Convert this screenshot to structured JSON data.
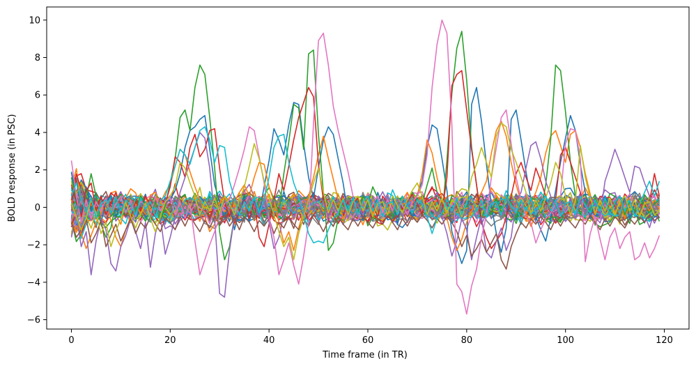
{
  "chart_data": {
    "type": "line",
    "title": "",
    "xlabel": "Time frame (in TR)",
    "ylabel": "BOLD response (in PSC)",
    "xlim": [
      -5,
      125
    ],
    "ylim": [
      -6.5,
      10.7
    ],
    "xticks": [
      0,
      20,
      40,
      60,
      80,
      100,
      120
    ],
    "yticks": [
      -6,
      -4,
      -2,
      0,
      2,
      4,
      6,
      8,
      10
    ],
    "xtick_labels": [
      "0",
      "20",
      "40",
      "60",
      "80",
      "100",
      "120"
    ],
    "ytick_labels": [
      "−6",
      "−4",
      "−2",
      "0",
      "2",
      "4",
      "6",
      "8",
      "10"
    ],
    "grid": false,
    "legend": "none",
    "n_frames": 120,
    "series_count_estimate": 60,
    "colors": [
      "#1f77b4",
      "#ff7f0e",
      "#2ca02c",
      "#d62728",
      "#9467bd",
      "#8c564b",
      "#e377c2",
      "#7f7f7f",
      "#bcbd22",
      "#17becf"
    ],
    "series": [
      {
        "values": [
          1.9,
          0.6,
          -0.4,
          1.1,
          -0.2,
          0.5,
          -0.8,
          0.3,
          0.6,
          -0.5,
          0.2,
          -0.1,
          0.4,
          -0.6,
          0.1,
          0.7,
          -0.3,
          0.2,
          -0.5,
          0.3,
          0.4,
          0.9,
          1.8,
          3.2,
          4.1,
          4.3,
          4.7,
          4.9,
          3.1,
          1.2,
          0.3,
          -0.6,
          0.4,
          -1.2,
          -0.2,
          0.6,
          -0.8,
          0.3,
          -0.4,
          1.1,
          2.5,
          4.2,
          3.6,
          2.8,
          4.4,
          5.6,
          5.5,
          3.4,
          1.6,
          0.5,
          2.1,
          3.6,
          4.3,
          3.9,
          2.6,
          1.3,
          -0.4,
          0.6,
          0.2,
          -0.7,
          0.3,
          -0.5,
          0.8,
          0.1,
          -0.3,
          0.6,
          -0.9,
          0.4,
          0.2,
          -0.5,
          0.7,
          1.4,
          3.2,
          4.4,
          4.2,
          2.6,
          0.9,
          -1.3,
          -2.2,
          -3.0,
          -2.3,
          5.5,
          6.4,
          4.6,
          2.3,
          0.1,
          -1.4,
          -2.4,
          -1.1,
          4.7,
          5.2,
          3.6,
          1.9,
          0.4,
          -0.5,
          -1.2,
          -1.8,
          -0.6,
          0.9,
          2.4,
          3.7,
          4.9,
          4.1,
          2.3,
          0.8,
          -0.6,
          0.4,
          -0.2,
          0.6,
          -0.4,
          0.3,
          -0.1,
          0.5,
          -0.6,
          0.2,
          -0.3,
          0.4,
          -0.1,
          0.3,
          0.1
        ]
      },
      {
        "values": [
          0.4,
          -0.6,
          -1.4,
          -2.2,
          -1.5,
          -0.8,
          -0.3,
          0.4,
          -0.7,
          -1.6,
          -2.1,
          -1.2,
          -0.5,
          0.3,
          -0.4,
          0.6,
          -0.2,
          0.5,
          0.2,
          0.8,
          1.2,
          2.2,
          3.1,
          2.8,
          1.9,
          1.1,
          0.4,
          -0.5,
          -1.3,
          -0.9,
          0.2,
          0.6,
          -0.4,
          0.3,
          0.8,
          1.2,
          0.6,
          1.6,
          2.4,
          2.3,
          1.1,
          0.3,
          -0.8,
          -1.9,
          -1.3,
          -2.3,
          -1.1,
          -0.2,
          0.6,
          1.6,
          2.8,
          3.8,
          2.6,
          1.5,
          0.4,
          -0.6,
          -0.2,
          0.4,
          -0.3,
          0.2,
          0.6,
          -0.4,
          0.3,
          -0.2,
          0.5,
          0.1,
          -0.3,
          0.4,
          0.8,
          0.2,
          0.6,
          1.8,
          3.6,
          2.9,
          1.6,
          0.5,
          -0.6,
          -1.6,
          -2.3,
          -1.7,
          -0.8,
          -0.2,
          0.4,
          0.8,
          1.4,
          2.9,
          4.1,
          4.6,
          3.8,
          2.4,
          1.2,
          0.3,
          -0.4,
          0.2,
          0.8,
          1.6,
          2.9,
          3.8,
          4.1,
          3.3,
          2.4,
          3.9,
          4.1,
          3.2,
          1.8,
          0.7,
          -0.4,
          0.3,
          -0.2,
          0.5,
          -0.3,
          0.4,
          -0.6,
          0.2,
          0.1,
          -0.4,
          0.3,
          -0.2,
          0.4,
          -0.1
        ]
      },
      {
        "values": [
          1.6,
          0.4,
          -0.8,
          0.5,
          1.8,
          0.6,
          -0.9,
          -1.6,
          -1.1,
          0.3,
          0.7,
          -0.4,
          0.5,
          -0.2,
          0.6,
          0.2,
          -0.5,
          0.3,
          -0.8,
          0.1,
          1.3,
          2.6,
          4.8,
          5.2,
          4.1,
          6.4,
          7.6,
          7.1,
          4.8,
          2.1,
          -1.3,
          -2.8,
          -2.1,
          -0.5,
          0.4,
          -0.6,
          0.2,
          -0.4,
          0.5,
          0.3,
          -0.5,
          0.6,
          -0.3,
          1.8,
          3.5,
          5.5,
          5.3,
          3.1,
          8.2,
          8.4,
          3.9,
          0.8,
          -2.3,
          -1.9,
          -0.6,
          0.5,
          -0.2,
          0.4,
          -0.3,
          0.6,
          0.2,
          1.1,
          0.5,
          -0.4,
          0.3,
          -0.5,
          0.2,
          0.6,
          0.1,
          -0.3,
          0.4,
          0.2,
          1.2,
          2.1,
          0.8,
          -0.6,
          2.5,
          6.1,
          8.5,
          9.4,
          6.8,
          3.2,
          1.2,
          -0.6,
          0.2,
          -0.4,
          0.5,
          -0.3,
          0.6,
          0.2,
          -0.5,
          0.3,
          -0.2,
          0.5,
          0.4,
          -0.3,
          1.2,
          3.6,
          7.6,
          7.3,
          5.1,
          2.4,
          0.6,
          -0.4,
          0.3,
          -0.2,
          0.5,
          -0.1,
          0.4,
          -0.3,
          0.2,
          0.6,
          -0.4,
          0.3,
          -0.2,
          0.5,
          0.1,
          -0.3,
          0.2,
          0.4
        ]
      },
      {
        "values": [
          1.2,
          0.3,
          -0.5,
          0.9,
          1.3,
          -0.2,
          0.6,
          -0.4,
          0.2,
          0.8,
          -0.3,
          0.5,
          -0.6,
          0.3,
          -0.2,
          0.6,
          0.1,
          -0.4,
          0.5,
          0.2,
          1.1,
          2.7,
          2.4,
          1.6,
          3.2,
          3.9,
          2.7,
          3.1,
          4.1,
          4.2,
          2.1,
          0.3,
          -0.5,
          0.6,
          -0.2,
          0.4,
          -0.6,
          0.3,
          -1.6,
          -2.1,
          -0.9,
          0.4,
          1.8,
          0.9,
          2.2,
          3.6,
          4.8,
          5.6,
          6.4,
          5.9,
          2.3,
          0.4,
          -0.5,
          0.3,
          -0.2,
          0.6,
          -0.4,
          0.2,
          0.5,
          -0.3,
          0.4,
          0.1,
          -0.5,
          0.6,
          0.2,
          -0.3,
          0.5,
          -0.1,
          0.3,
          0.7,
          0.2,
          -0.4,
          0.6,
          1.1,
          0.4,
          -0.3,
          1.6,
          6.5,
          7.1,
          7.3,
          5.2,
          3.1,
          1.2,
          -0.8,
          -1.6,
          -2.2,
          -1.8,
          -1.4,
          -0.5,
          0.6,
          1.8,
          2.4,
          1.6,
          0.9,
          2.1,
          1.4,
          0.6,
          -0.3,
          0.4,
          2.8,
          3.2,
          2.4,
          1.6,
          0.8,
          -0.4,
          0.3,
          -0.2,
          0.5,
          -0.3,
          0.4,
          0.1,
          -0.5,
          0.3,
          -0.2,
          0.6,
          0.2,
          -0.4,
          0.3,
          1.8,
          0.6
        ]
      },
      {
        "values": [
          -1.6,
          -0.4,
          -2.1,
          -1.3,
          -3.6,
          -1.8,
          -0.6,
          -1.2,
          -3.0,
          -3.4,
          -2.1,
          -1.5,
          -0.6,
          -1.3,
          -2.2,
          -0.8,
          -3.2,
          -1.4,
          -0.5,
          -2.5,
          -1.6,
          -0.5,
          0.8,
          1.6,
          2.4,
          3.2,
          4.0,
          3.7,
          2.1,
          -0.6,
          -4.6,
          -4.8,
          -2.3,
          -0.5,
          0.4,
          -0.3,
          0.6,
          0.2,
          -0.5,
          0.3,
          -0.8,
          -2.2,
          -1.6,
          -0.4,
          0.3,
          -0.6,
          0.2,
          -0.4,
          0.5,
          -0.2,
          0.6,
          0.3,
          -0.5,
          0.2,
          -0.3,
          0.4,
          -0.6,
          0.3,
          0.1,
          -0.4,
          0.5,
          -0.2,
          0.3,
          -0.5,
          0.6,
          -0.1,
          0.2,
          -0.4,
          0.5,
          0.2,
          -0.3,
          0.4,
          -0.6,
          0.3,
          0.8,
          -0.5,
          -1.4,
          -2.6,
          -1.8,
          -0.6,
          -1.2,
          -2.8,
          -1.6,
          -0.5,
          -2.4,
          -2.7,
          -1.8,
          -1.1,
          -2.3,
          -1.6,
          0.3,
          0.8,
          2.1,
          3.3,
          3.5,
          2.6,
          1.4,
          0.6,
          -0.4,
          0.3,
          -0.2,
          0.5,
          -0.6,
          0.4,
          -0.3,
          0.6,
          0.2,
          -0.5,
          1.4,
          2.2,
          3.1,
          2.4,
          1.6,
          0.8,
          2.2,
          2.1,
          1.3,
          0.6,
          -0.2,
          0.4
        ]
      },
      {
        "values": [
          -0.8,
          -1.6,
          -1.2,
          -0.6,
          -1.9,
          -1.4,
          -0.7,
          -2.1,
          -1.5,
          -0.9,
          -1.8,
          -1.2,
          -0.6,
          -1.4,
          -0.8,
          -1.1,
          -0.5,
          -0.9,
          -1.3,
          -0.6,
          -0.8,
          -1.2,
          -0.5,
          -1.0,
          -0.4,
          -0.9,
          -1.3,
          -0.7,
          -1.1,
          -0.5,
          -0.9,
          -0.4,
          -1.0,
          -0.6,
          -1.2,
          -0.5,
          -0.8,
          -1.3,
          -0.7,
          -1.0,
          -0.6,
          -1.4,
          -0.8,
          -1.1,
          -0.5,
          -0.9,
          -1.2,
          -0.6,
          -1.0,
          -0.4,
          -0.8,
          -1.3,
          -0.7,
          -1.0,
          -0.5,
          -0.9,
          -1.2,
          -0.6,
          -1.0,
          -0.5,
          -0.8,
          -1.1,
          -0.6,
          -0.9,
          -0.4,
          -0.8,
          -1.2,
          -0.6,
          -1.0,
          -0.5,
          -0.8,
          -0.4,
          -0.7,
          -1.1,
          -0.6,
          -0.9,
          -0.5,
          -0.8,
          -1.3,
          -2.1,
          -1.5,
          -2.6,
          -2.2,
          -1.7,
          -2.4,
          -1.9,
          -1.4,
          -2.8,
          -3.3,
          -2.1,
          -1.4,
          -0.8,
          -1.1,
          -0.6,
          -0.9,
          -0.5,
          -0.8,
          -1.2,
          -0.6,
          -1.0,
          -0.5,
          -0.8,
          -1.1,
          -0.6,
          -0.9,
          -0.4,
          -0.8,
          -1.2,
          -0.6,
          -1.0,
          -0.5,
          -0.8,
          -1.1,
          -0.6,
          -0.9,
          -0.5,
          -0.8,
          -0.4,
          -0.7,
          -0.5
        ]
      },
      {
        "values": [
          2.5,
          0.6,
          -0.8,
          0.4,
          -0.6,
          0.3,
          -0.2,
          0.5,
          -0.4,
          0.2,
          0.6,
          -0.3,
          0.4,
          -0.5,
          0.3,
          0.1,
          -0.4,
          0.6,
          -0.2,
          0.3,
          0.5,
          -0.4,
          0.3,
          -0.6,
          0.2,
          -1.8,
          -3.6,
          -2.8,
          -2.0,
          -1.3,
          -0.5,
          0.2,
          0.4,
          1.2,
          2.1,
          3.1,
          4.3,
          4.1,
          2.7,
          1.3,
          -0.6,
          -1.6,
          -3.6,
          -2.8,
          -1.9,
          -3.1,
          -4.1,
          -2.6,
          -0.8,
          4.5,
          8.9,
          9.3,
          7.6,
          5.4,
          4.1,
          3.0,
          1.9,
          0.6,
          -0.4,
          0.3,
          -0.5,
          0.2,
          0.6,
          -0.3,
          0.4,
          -0.2,
          0.5,
          0.1,
          -0.4,
          0.3,
          0.6,
          1.2,
          2.8,
          6.4,
          8.7,
          10.0,
          9.3,
          4.4,
          -4.1,
          -4.5,
          -5.7,
          -4.2,
          -3.3,
          -1.6,
          -0.4,
          1.6,
          3.2,
          4.8,
          5.2,
          3.4,
          1.6,
          0.4,
          -0.5,
          -0.8,
          -1.9,
          -1.2,
          -0.6,
          -0.3,
          0.2,
          0.6,
          3.4,
          4.2,
          4.1,
          2.6,
          -2.9,
          -1.4,
          -0.5,
          -1.7,
          -2.8,
          -1.6,
          -1.1,
          -2.2,
          -1.6,
          -1.3,
          -2.8,
          -2.6,
          -1.9,
          -2.7,
          -2.2,
          -1.5
        ]
      },
      {
        "values": [
          0.3,
          -0.4,
          0.6,
          -0.2,
          0.4,
          -0.5,
          0.3,
          0.1,
          -0.4,
          0.5,
          -0.2,
          0.3,
          0.6,
          -0.4,
          0.2,
          -0.3,
          0.5,
          0.1,
          -0.5,
          0.3,
          -0.2,
          0.6,
          0.4,
          -0.3,
          0.5,
          -0.1,
          0.3,
          -0.5,
          0.2,
          0.6,
          -0.3,
          0.4,
          -0.2,
          0.5,
          0.1,
          -0.4,
          0.3,
          -0.6,
          0.2,
          0.5,
          -0.3,
          0.4,
          0.1,
          -0.5,
          0.3,
          -0.2,
          0.6,
          0.4,
          -0.3,
          0.2,
          -0.5,
          0.3,
          0.6,
          -0.2,
          0.4,
          -0.1,
          0.5,
          -0.4,
          0.2,
          0.3,
          -0.5,
          0.6,
          -0.2,
          0.4,
          0.1,
          -0.3,
          0.5,
          -0.4,
          0.2,
          0.6,
          -0.3,
          0.4,
          -0.1,
          0.3,
          -0.5,
          0.2,
          0.5,
          -0.4,
          0.3,
          0.1,
          -0.3,
          0.6,
          -0.2,
          0.4,
          -0.5,
          0.3,
          0.2,
          -0.4,
          0.5,
          -0.1,
          0.3,
          -0.3,
          0.6,
          0.2,
          -0.4,
          0.3,
          -0.2,
          0.5,
          0.1,
          -0.5,
          0.4,
          -0.2,
          0.6,
          0.3,
          -0.4,
          0.2,
          -0.1,
          0.5,
          -0.3,
          0.4,
          0.2,
          -0.5,
          0.3,
          -0.2,
          0.6,
          0.1,
          -0.4,
          0.3,
          -0.2,
          0.4
        ]
      },
      {
        "values": [
          0.2,
          -0.5,
          -1.2,
          -0.6,
          0.4,
          -0.3,
          -1.4,
          -0.8,
          -2.1,
          -1.3,
          -0.6,
          0.3,
          -0.5,
          -1.1,
          -0.4,
          0.2,
          -0.6,
          -1.3,
          -0.5,
          0.3,
          0.6,
          1.1,
          2.4,
          2.1,
          1.3,
          0.6,
          -0.4,
          0.3,
          -0.2,
          0.5,
          -0.3,
          0.6,
          0.2,
          -0.4,
          0.4,
          1.1,
          2.2,
          3.4,
          2.6,
          1.4,
          0.5,
          -0.4,
          -1.3,
          -2.1,
          -1.6,
          -2.8,
          -1.4,
          -0.5,
          0.4,
          1.3,
          2.1,
          0.8,
          -0.3,
          0.4,
          -0.2,
          0.5,
          -0.4,
          0.3,
          0.6,
          -0.2,
          0.4,
          -0.5,
          0.2,
          0.3,
          -0.4,
          0.6,
          0.1,
          -0.3,
          0.4,
          0.9,
          1.3,
          0.6,
          -0.4,
          0.3,
          -0.2,
          0.5,
          -0.3,
          0.4,
          0.2,
          -0.5,
          0.3,
          1.6,
          2.3,
          3.2,
          2.4,
          1.6,
          3.8,
          4.5,
          4.3,
          3.1,
          2.4,
          1.6,
          0.8,
          -0.3,
          0.4,
          -0.2,
          0.5,
          1.3,
          2.4,
          1.8,
          0.6,
          -0.4,
          0.3,
          3.3,
          1.6,
          0.5,
          -0.3,
          0.4,
          -0.2,
          0.5,
          -0.4,
          0.3,
          0.6,
          -0.2,
          0.4,
          -0.5,
          0.2,
          0.3,
          -0.4,
          -0.2
        ]
      },
      {
        "values": [
          0.6,
          1.3,
          0.4,
          -0.3,
          0.5,
          -0.6,
          0.2,
          0.4,
          -0.3,
          0.6,
          -0.2,
          0.4,
          0.1,
          -0.4,
          0.5,
          -0.1,
          0.3,
          -0.5,
          0.4,
          0.6,
          1.4,
          2.2,
          3.1,
          2.8,
          2.3,
          3.2,
          4.1,
          4.3,
          3.6,
          2.4,
          3.3,
          3.2,
          1.4,
          0.5,
          -0.4,
          0.3,
          -0.2,
          0.6,
          -0.3,
          0.4,
          1.6,
          3.2,
          3.8,
          3.9,
          2.4,
          1.3,
          0.6,
          -0.4,
          -1.4,
          -1.9,
          -1.8,
          -1.9,
          -1.2,
          -0.6,
          -0.3,
          0.4,
          -0.2,
          0.5,
          -0.4,
          0.3,
          0.6,
          -0.2,
          0.4,
          -0.5,
          0.2,
          0.3,
          -0.4,
          0.6,
          0.1,
          -0.3,
          0.4,
          0.2,
          -0.5,
          -1.4,
          -0.6,
          -0.3,
          0.4,
          -0.2,
          0.5,
          -0.4,
          0.3,
          0.6,
          -0.2,
          0.4,
          -0.5,
          0.2,
          0.3,
          -0.4,
          0.6,
          0.1,
          -0.3,
          0.4,
          -0.2,
          0.5,
          -0.4,
          0.3,
          0.6,
          -0.2,
          0.4,
          -0.5,
          0.2,
          0.3,
          -0.4,
          0.6,
          0.1,
          -0.3,
          0.4,
          -0.2,
          0.5,
          -0.4,
          0.3,
          0.6,
          -0.2,
          0.4,
          -0.5,
          0.2,
          0.8,
          1.4,
          0.6,
          1.4
        ]
      }
    ]
  }
}
